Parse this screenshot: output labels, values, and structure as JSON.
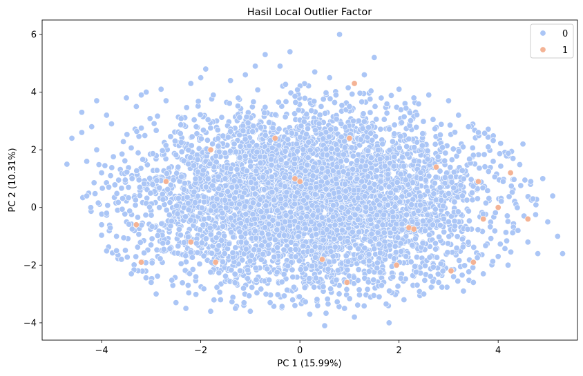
{
  "chart_data": {
    "type": "scatter",
    "title": "Hasil Local Outlier Factor",
    "xlabel": "PC 1 (15.99%)",
    "ylabel": "PC 2 (10.31%)",
    "xlim": [
      -5.2,
      5.6
    ],
    "ylim": [
      -4.6,
      6.5
    ],
    "xticks": [
      -4,
      -2,
      0,
      2,
      4
    ],
    "xtick_labels": [
      "−4",
      "−2",
      "0",
      "2",
      "4"
    ],
    "yticks": [
      -4,
      -2,
      0,
      2,
      4,
      6
    ],
    "ytick_labels": [
      "−4",
      "−2",
      "0",
      "2",
      "4",
      "6"
    ],
    "grid": false,
    "legend_position": "top-right",
    "series": [
      {
        "name": "0",
        "color": "#abc6f6",
        "points": [
          [
            -4.7,
            1.5
          ],
          [
            -4.6,
            2.4
          ],
          [
            -4.4,
            3.3
          ],
          [
            -4.4,
            2.6
          ],
          [
            -4.3,
            1.6
          ],
          [
            -4.3,
            0.4
          ],
          [
            -4.2,
            2.8
          ],
          [
            -4.1,
            3.7
          ],
          [
            -4.1,
            2.0
          ],
          [
            -4.0,
            -0.6
          ],
          [
            -4.0,
            1.2
          ],
          [
            -3.9,
            -0.2
          ],
          [
            -3.9,
            3.2
          ],
          [
            -3.8,
            2.9
          ],
          [
            -3.7,
            -1.5
          ],
          [
            -3.7,
            -1.0
          ],
          [
            -3.6,
            -1.8
          ],
          [
            -3.5,
            3.8
          ],
          [
            -3.4,
            -2.3
          ],
          [
            -3.3,
            3.5
          ],
          [
            -3.2,
            3.9
          ],
          [
            -3.1,
            4.0
          ],
          [
            -3.0,
            -2.6
          ],
          [
            -2.9,
            -3.0
          ],
          [
            -2.8,
            4.1
          ],
          [
            -2.7,
            3.7
          ],
          [
            -2.5,
            -3.3
          ],
          [
            -2.3,
            -3.5
          ],
          [
            -2.2,
            4.3
          ],
          [
            -2.0,
            4.5
          ],
          [
            -1.9,
            4.8
          ],
          [
            -1.8,
            -3.6
          ],
          [
            -1.6,
            -3.2
          ],
          [
            -1.4,
            4.4
          ],
          [
            -1.3,
            -3.5
          ],
          [
            -1.1,
            4.6
          ],
          [
            -1.0,
            -3.6
          ],
          [
            -0.9,
            4.9
          ],
          [
            -0.7,
            5.3
          ],
          [
            -0.6,
            -3.3
          ],
          [
            -0.4,
            4.9
          ],
          [
            -0.2,
            5.4
          ],
          [
            -0.1,
            -3.4
          ],
          [
            0.2,
            -3.7
          ],
          [
            0.3,
            4.7
          ],
          [
            0.5,
            -4.1
          ],
          [
            0.6,
            4.5
          ],
          [
            0.8,
            6.0
          ],
          [
            0.9,
            -3.5
          ],
          [
            1.1,
            -3.8
          ],
          [
            1.3,
            4.6
          ],
          [
            1.5,
            5.2
          ],
          [
            1.6,
            -3.1
          ],
          [
            1.8,
            -4.0
          ],
          [
            2.0,
            4.1
          ],
          [
            2.1,
            -3.2
          ],
          [
            2.3,
            3.8
          ],
          [
            2.5,
            -3.0
          ],
          [
            2.6,
            3.9
          ],
          [
            2.8,
            -2.6
          ],
          [
            3.0,
            3.7
          ],
          [
            3.1,
            -2.4
          ],
          [
            3.2,
            3.2
          ],
          [
            3.3,
            -2.9
          ],
          [
            3.4,
            2.8
          ],
          [
            3.5,
            -2.6
          ],
          [
            3.6,
            2.6
          ],
          [
            3.7,
            -2.3
          ],
          [
            3.8,
            2.1
          ],
          [
            3.9,
            1.6
          ],
          [
            4.0,
            -1.7
          ],
          [
            4.1,
            0.9
          ],
          [
            4.2,
            -2.0
          ],
          [
            4.3,
            1.7
          ],
          [
            4.4,
            -0.8
          ],
          [
            4.5,
            2.2
          ],
          [
            4.6,
            -1.2
          ],
          [
            4.7,
            0.3
          ],
          [
            4.8,
            -1.6
          ],
          [
            4.9,
            1.0
          ],
          [
            5.0,
            -0.5
          ],
          [
            5.1,
            0.4
          ],
          [
            5.2,
            -1.0
          ],
          [
            5.3,
            -1.6
          ]
        ],
        "cloud": {
          "center": [
            0.2,
            0.3
          ],
          "std": [
            1.75,
            1.55
          ],
          "count": 5200
        }
      },
      {
        "name": "1",
        "color": "#f4b395",
        "points": [
          [
            -3.3,
            -0.6
          ],
          [
            -3.2,
            -1.9
          ],
          [
            -2.7,
            0.9
          ],
          [
            -2.2,
            -1.2
          ],
          [
            -1.8,
            2.0
          ],
          [
            -1.7,
            -1.9
          ],
          [
            -0.5,
            2.4
          ],
          [
            -0.1,
            1.0
          ],
          [
            0.0,
            0.9
          ],
          [
            0.45,
            -1.8
          ],
          [
            0.95,
            -2.6
          ],
          [
            1.0,
            2.4
          ],
          [
            1.1,
            4.3
          ],
          [
            1.95,
            -2.0
          ],
          [
            2.2,
            -0.7
          ],
          [
            2.3,
            -0.75
          ],
          [
            2.75,
            1.4
          ],
          [
            3.05,
            -2.2
          ],
          [
            3.5,
            -1.9
          ],
          [
            3.6,
            0.9
          ],
          [
            3.7,
            -0.4
          ],
          [
            4.0,
            0.0
          ],
          [
            4.25,
            1.2
          ],
          [
            4.6,
            -0.4
          ]
        ]
      }
    ]
  }
}
